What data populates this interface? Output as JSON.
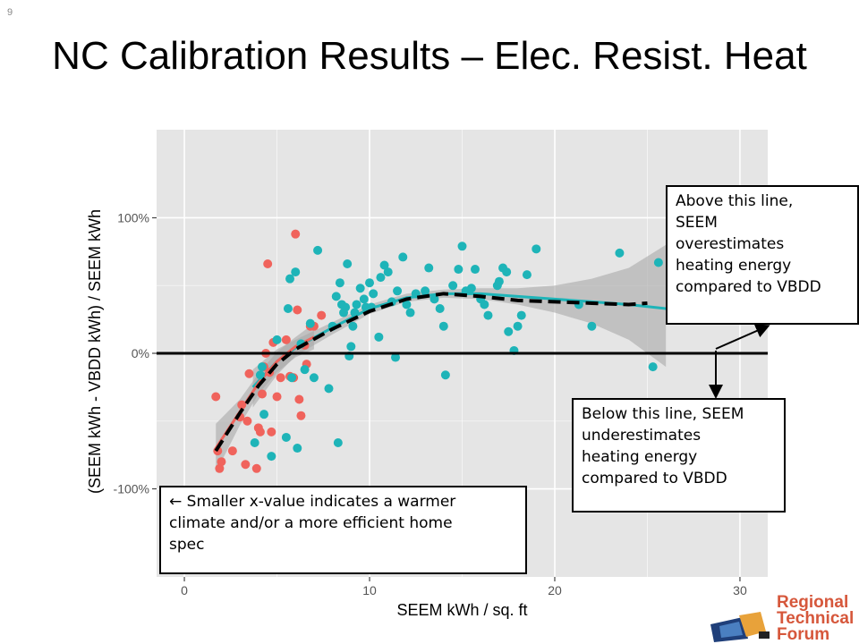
{
  "slide_number": "9",
  "title": "NC Calibration Results – Elec. Resist. Heat",
  "callouts": {
    "above": [
      "Above this line,",
      "SEEM",
      "overestimates",
      "heating energy",
      "compared to VBDD"
    ],
    "below": [
      "Below this line, SEEM",
      "underestimates",
      "heating energy",
      "compared to VBDD"
    ],
    "left": [
      "← Smaller x-value indicates a warmer",
      "climate and/or a more efficient home",
      "spec"
    ]
  },
  "logo": {
    "lines": [
      "Regional",
      "Technical",
      "Forum"
    ]
  },
  "colors": {
    "panel": "#e5e5e5",
    "grid": "#ffffff",
    "red": "#f0635c",
    "teal": "#1eb4b8",
    "band": "#a8a8a8",
    "zero_line": "#000000"
  },
  "chart_data": {
    "type": "scatter",
    "xlabel": "SEEM kWh / sq. ft",
    "ylabel": "(SEEM kWh - VBDD kWh) / SEEM kWh",
    "xlim": [
      -1.5,
      31.5
    ],
    "ylim": [
      -165,
      165
    ],
    "x_ticks": [
      0,
      10,
      20,
      30
    ],
    "x_tick_labels": [
      "0",
      "10",
      "20",
      "30"
    ],
    "y_ticks": [
      -100,
      0,
      100
    ],
    "y_tick_labels": [
      "-100%",
      "0%",
      "100%"
    ],
    "grid": true,
    "reference_line_y": 0,
    "series": [
      {
        "color_key": "red",
        "points": [
          [
            1.7,
            -32
          ],
          [
            1.8,
            -72
          ],
          [
            1.9,
            -85
          ],
          [
            2.0,
            -80
          ],
          [
            2.6,
            -72
          ],
          [
            3.0,
            -47
          ],
          [
            3.1,
            -38
          ],
          [
            3.3,
            -82
          ],
          [
            3.4,
            -50
          ],
          [
            3.5,
            -15
          ],
          [
            3.9,
            -85
          ],
          [
            4.0,
            -55
          ],
          [
            4.1,
            -58
          ],
          [
            4.2,
            -30
          ],
          [
            4.3,
            -10
          ],
          [
            4.4,
            0
          ],
          [
            4.5,
            66
          ],
          [
            4.6,
            -14
          ],
          [
            4.7,
            -58
          ],
          [
            4.8,
            8
          ],
          [
            5.0,
            -32
          ],
          [
            5.2,
            -18
          ],
          [
            5.5,
            10
          ],
          [
            5.7,
            -17
          ],
          [
            5.9,
            -18
          ],
          [
            6.0,
            88
          ],
          [
            6.1,
            32
          ],
          [
            6.2,
            -34
          ],
          [
            6.3,
            -46
          ],
          [
            6.5,
            6
          ],
          [
            6.6,
            -8
          ],
          [
            6.8,
            20
          ],
          [
            7.0,
            20
          ],
          [
            7.4,
            28
          ]
        ]
      },
      {
        "color_key": "teal",
        "points": [
          [
            3.8,
            -66
          ],
          [
            4.1,
            -16
          ],
          [
            4.2,
            -10
          ],
          [
            4.3,
            -45
          ],
          [
            4.7,
            -76
          ],
          [
            5.0,
            10
          ],
          [
            5.5,
            -62
          ],
          [
            5.6,
            33
          ],
          [
            5.7,
            55
          ],
          [
            5.8,
            -18
          ],
          [
            6.0,
            60
          ],
          [
            6.1,
            -70
          ],
          [
            6.3,
            7
          ],
          [
            6.5,
            -12
          ],
          [
            6.8,
            22
          ],
          [
            7.0,
            -18
          ],
          [
            7.2,
            76
          ],
          [
            7.8,
            -26
          ],
          [
            8.0,
            20
          ],
          [
            8.2,
            42
          ],
          [
            8.3,
            -66
          ],
          [
            8.4,
            52
          ],
          [
            8.5,
            36
          ],
          [
            8.6,
            30
          ],
          [
            8.7,
            34
          ],
          [
            8.8,
            66
          ],
          [
            8.9,
            -2
          ],
          [
            9.0,
            5
          ],
          [
            9.1,
            20
          ],
          [
            9.2,
            30
          ],
          [
            9.3,
            36
          ],
          [
            9.5,
            48
          ],
          [
            9.7,
            40
          ],
          [
            9.8,
            34
          ],
          [
            10.0,
            52
          ],
          [
            10.1,
            34
          ],
          [
            10.2,
            44
          ],
          [
            10.5,
            12
          ],
          [
            10.6,
            56
          ],
          [
            10.8,
            65
          ],
          [
            11.0,
            60
          ],
          [
            11.2,
            38
          ],
          [
            11.4,
            -3
          ],
          [
            11.5,
            46
          ],
          [
            11.8,
            71
          ],
          [
            12.0,
            36
          ],
          [
            12.2,
            30
          ],
          [
            12.5,
            44
          ],
          [
            13.0,
            46
          ],
          [
            13.2,
            63
          ],
          [
            13.5,
            40
          ],
          [
            13.8,
            33
          ],
          [
            14.0,
            20
          ],
          [
            14.1,
            -16
          ],
          [
            14.5,
            50
          ],
          [
            14.8,
            62
          ],
          [
            15.0,
            79
          ],
          [
            15.2,
            46
          ],
          [
            15.5,
            48
          ],
          [
            15.7,
            62
          ],
          [
            16.0,
            40
          ],
          [
            16.2,
            36
          ],
          [
            16.4,
            28
          ],
          [
            16.9,
            50
          ],
          [
            17.0,
            53
          ],
          [
            17.2,
            63
          ],
          [
            17.4,
            60
          ],
          [
            17.5,
            16
          ],
          [
            17.8,
            2
          ],
          [
            18.0,
            20
          ],
          [
            18.2,
            28
          ],
          [
            18.5,
            58
          ],
          [
            19.0,
            77
          ],
          [
            21.3,
            36
          ],
          [
            22.0,
            20
          ],
          [
            23.5,
            74
          ],
          [
            25.3,
            -10
          ],
          [
            25.6,
            67
          ]
        ]
      }
    ],
    "smooth_red": [
      [
        1.7,
        -70
      ],
      [
        3,
        -43
      ],
      [
        4,
        -22
      ],
      [
        5,
        -6
      ],
      [
        6,
        5
      ],
      [
        7,
        12
      ]
    ],
    "smooth_red_band": [
      [
        1.7,
        -52,
        -88
      ],
      [
        3,
        -34,
        -53
      ],
      [
        4,
        -15,
        -30
      ],
      [
        5,
        1,
        -14
      ],
      [
        6,
        12,
        -3
      ],
      [
        7,
        22,
        3
      ]
    ],
    "smooth_teal": [
      [
        3.7,
        -25
      ],
      [
        5,
        -6
      ],
      [
        6,
        4
      ],
      [
        8,
        19
      ],
      [
        10,
        33
      ],
      [
        12,
        41
      ],
      [
        14,
        44
      ],
      [
        16,
        44
      ],
      [
        18,
        42
      ],
      [
        20,
        40
      ],
      [
        22,
        38
      ],
      [
        24,
        36
      ],
      [
        26,
        33
      ]
    ],
    "smooth_teal_band": [
      [
        3.7,
        -12,
        -40
      ],
      [
        5,
        3,
        -16
      ],
      [
        6,
        10,
        -2
      ],
      [
        8,
        23,
        14
      ],
      [
        10,
        36,
        29
      ],
      [
        12,
        44,
        38
      ],
      [
        14,
        47,
        41
      ],
      [
        16,
        48,
        40
      ],
      [
        18,
        48,
        36
      ],
      [
        20,
        50,
        30
      ],
      [
        22,
        55,
        22
      ],
      [
        24,
        63,
        10
      ],
      [
        26,
        80,
        -10
      ]
    ],
    "overall_fit": [
      [
        1.7,
        -72
      ],
      [
        3,
        -44
      ],
      [
        4,
        -24
      ],
      [
        5,
        -8
      ],
      [
        6,
        3
      ],
      [
        8,
        18
      ],
      [
        10,
        31
      ],
      [
        12,
        40
      ],
      [
        14,
        44
      ],
      [
        16,
        42
      ],
      [
        18,
        39
      ],
      [
        20,
        38
      ],
      [
        22,
        37
      ],
      [
        24,
        36
      ],
      [
        25,
        37
      ]
    ]
  }
}
